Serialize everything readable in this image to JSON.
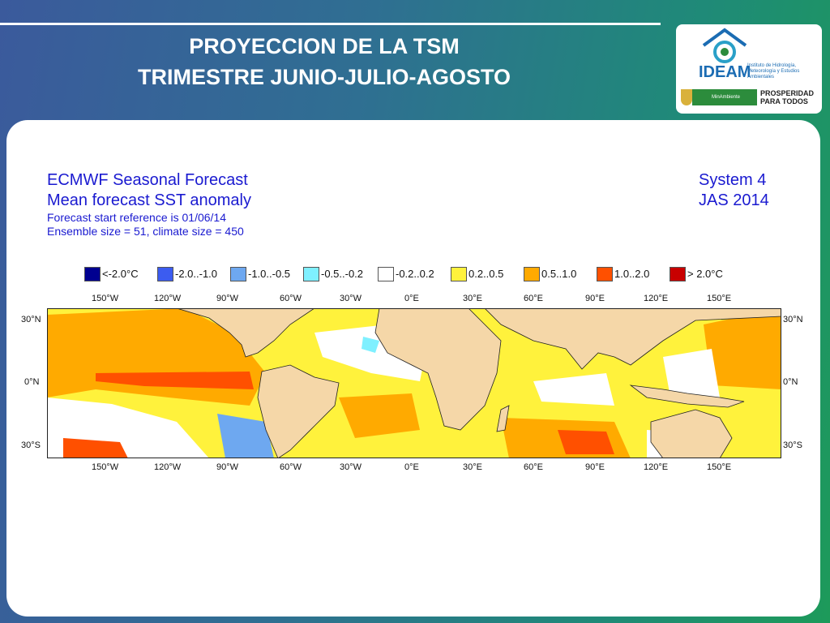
{
  "slide": {
    "title_line1": "PROYECCION DE LA TSM",
    "title_line2": "TRIMESTRE JUNIO-JULIO-AGOSTO"
  },
  "logo": {
    "ideam": "IDEAM",
    "ideam_sub": "Instituto de Hidrología, Meteorología y Estudios Ambientales",
    "ministry": "MinAmbiente",
    "prosperidad": "PROSPERIDAD PARA TODOS",
    "brand_color": "#1b6cb3"
  },
  "forecast": {
    "title1": "ECMWF Seasonal Forecast",
    "title2": "Mean forecast SST anomaly",
    "start_ref": "Forecast start reference is 01/06/14",
    "ensemble": "Ensemble size = 51, climate size = 450",
    "system": "System 4",
    "period": "JAS 2014"
  },
  "legend": [
    {
      "label": "<-2.0°C",
      "color": "#000090"
    },
    {
      "label": "-2.0..-1.0",
      "color": "#3c5cf0"
    },
    {
      "label": "-1.0..-0.5",
      "color": "#6ea8f0"
    },
    {
      "label": "-0.5..-0.2",
      "color": "#7ff0ff"
    },
    {
      "label": "-0.2..0.2",
      "color": "#ffffff"
    },
    {
      "label": "0.2..0.5",
      "color": "#fff23c"
    },
    {
      "label": "0.5..1.0",
      "color": "#ffaa00"
    },
    {
      "label": "1.0..2.0",
      "color": "#ff5000"
    },
    {
      "label": "> 2.0°C",
      "color": "#c80000"
    }
  ],
  "axes": {
    "lon_labels": [
      "150°W",
      "120°W",
      "90°W",
      "60°W",
      "30°W",
      "0°E",
      "30°E",
      "60°E",
      "90°E",
      "120°E",
      "150°E"
    ],
    "lat_labels": [
      "30°N",
      "0°N",
      "30°S"
    ]
  },
  "land_color": "#f5d7a8"
}
